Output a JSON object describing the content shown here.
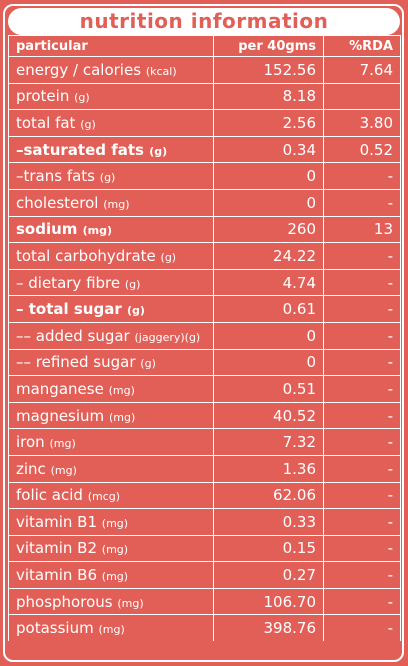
{
  "title": "nutrition information",
  "headers": {
    "particular": "particular",
    "per": "per 40gms",
    "rda": "%RDA"
  },
  "rows": [
    {
      "label": "energy / calories",
      "unit": "(kcal)",
      "value": "152.56",
      "rda": "7.64",
      "bold": false
    },
    {
      "label": "protein",
      "unit": "(g)",
      "value": "8.18",
      "rda": "",
      "bold": false
    },
    {
      "label": "total fat",
      "unit": "(g)",
      "value": "2.56",
      "rda": "3.80",
      "bold": false
    },
    {
      "label": "–saturated fats",
      "unit": "(g)",
      "value": "0.34",
      "rda": "0.52",
      "bold": true
    },
    {
      "label": "–trans fats",
      "unit": "(g)",
      "value": "0",
      "rda": "-",
      "bold": false
    },
    {
      "label": "cholesterol",
      "unit": "(mg)",
      "value": "0",
      "rda": "-",
      "bold": false
    },
    {
      "label": "sodium",
      "unit": "(mg)",
      "value": "260",
      "rda": "13",
      "bold": true
    },
    {
      "label": "total carbohydrate",
      "unit": "(g)",
      "value": "24.22",
      "rda": "-",
      "bold": false
    },
    {
      "label": "– dietary fibre",
      "unit": "(g)",
      "value": "4.74",
      "rda": "-",
      "bold": false
    },
    {
      "label": "– total sugar",
      "unit": "(g)",
      "value": "0.61",
      "rda": "-",
      "bold": true
    },
    {
      "label": "–– added sugar",
      "unit": "(jaggery)(g)",
      "value": "0",
      "rda": "-",
      "bold": false
    },
    {
      "label": "–– refined sugar",
      "unit": "(g)",
      "value": "0",
      "rda": "-",
      "bold": false
    },
    {
      "label": "manganese",
      "unit": "(mg)",
      "value": "0.51",
      "rda": "-",
      "bold": false
    },
    {
      "label": "magnesium",
      "unit": "(mg)",
      "value": "40.52",
      "rda": "-",
      "bold": false
    },
    {
      "label": "iron",
      "unit": "(mg)",
      "value": "7.32",
      "rda": "-",
      "bold": false
    },
    {
      "label": "zinc",
      "unit": "(mg)",
      "value": "1.36",
      "rda": "-",
      "bold": false
    },
    {
      "label": "folic acid",
      "unit": "(mcg)",
      "value": "62.06",
      "rda": "-",
      "bold": false
    },
    {
      "label": "vitamin B1",
      "unit": "(mg)",
      "value": "0.33",
      "rda": "-",
      "bold": false
    },
    {
      "label": "vitamin B2",
      "unit": "(mg)",
      "value": "0.15",
      "rda": "-",
      "bold": false
    },
    {
      "label": "vitamin B6",
      "unit": "(mg)",
      "value": "0.27",
      "rda": "-",
      "bold": false
    },
    {
      "label": "phosphorous",
      "unit": "(mg)",
      "value": "106.70",
      "rda": "-",
      "bold": false
    },
    {
      "label": "potassium",
      "unit": "(mg)",
      "value": "398.76",
      "rda": "-",
      "bold": false
    }
  ]
}
